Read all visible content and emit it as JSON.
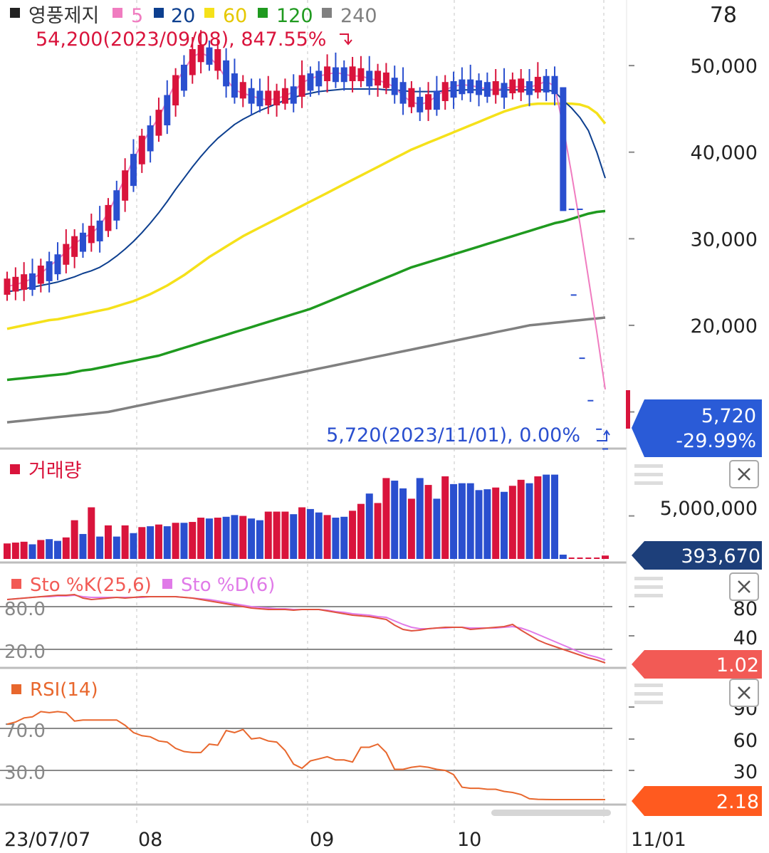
{
  "header": {
    "stock_name": "영풍제지",
    "ma_labels": [
      "5",
      "20",
      "60",
      "120",
      "240"
    ],
    "top_right_value": "78",
    "high_note": "54,200(2023/09/08), 847.55%",
    "low_note": "5,720(2023/11/01), 0.00%"
  },
  "price_badge": {
    "price": "5,720",
    "change": "-29.99%"
  },
  "volume_panel": {
    "title": "거래량",
    "badge": "393,670",
    "axis_label": "5,000,000"
  },
  "sto_panel": {
    "title_k": "Sto %K(25,6)",
    "title_d": "Sto %D(6)",
    "badge": "1.02",
    "axis": [
      "80",
      "40"
    ],
    "line_labels": [
      "80.0",
      "20.0"
    ]
  },
  "rsi_panel": {
    "title": "RSI(14)",
    "badge": "2.18",
    "axis": [
      "90",
      "60",
      "30"
    ],
    "line_labels": [
      "70.0",
      "30.0"
    ]
  },
  "x_axis": {
    "labels": [
      "23/07/07",
      "08",
      "09",
      "10",
      "11/01"
    ]
  },
  "colors": {
    "up": "#d9143c",
    "down": "#2a4fcf",
    "ma5": "#f07cc0",
    "ma20": "#0d3f8f",
    "ma60": "#f5e11a",
    "ma120": "#1f9a1f",
    "ma240": "#808080",
    "stoK": "#e0533f",
    "stoD": "#e07ae8",
    "rsi": "#e8672d",
    "price_badge": "#2a5bd7",
    "volume_badge": "#1d3f7a",
    "sto_badge": "#f25a55",
    "rsi_badge": "#ff5a1f"
  },
  "chart_data": [
    {
      "type": "candlestick",
      "title": "영풍제지",
      "y_ticks": [
        10000,
        20000,
        30000,
        40000,
        50000
      ],
      "ylim": [
        7000,
        57000
      ],
      "moving_averages": [
        {
          "name": "5",
          "values": [
            24500,
            24700,
            25000,
            25400,
            26000,
            26800,
            27600,
            28500,
            29400,
            30100,
            30600,
            31500,
            33000,
            35000,
            37000,
            39200,
            41000,
            42500,
            44000,
            46000,
            48000,
            49500,
            51000,
            51500,
            51000,
            50000,
            48500,
            47200,
            46800,
            46500,
            46200,
            46000,
            46200,
            46500,
            47000,
            48000,
            48500,
            48800,
            49000,
            49200,
            49000,
            48800,
            48800,
            48500,
            48300,
            48000,
            47500,
            46500,
            45800,
            45500,
            45800,
            46500,
            47200,
            47600,
            47800,
            47700,
            47500,
            47300,
            47200,
            47400,
            47500,
            47600,
            47500,
            47800,
            48200,
            47600,
            43000,
            37500,
            31700,
            25500,
            19200,
            12600
          ]
        },
        {
          "name": "20",
          "values": [
            23900,
            24000,
            24200,
            24400,
            24600,
            24800,
            25000,
            25300,
            25600,
            26000,
            26300,
            26700,
            27300,
            28000,
            28800,
            29700,
            30700,
            31800,
            33000,
            34300,
            35700,
            37000,
            38300,
            39500,
            40600,
            41600,
            42400,
            43200,
            43800,
            44300,
            44800,
            45200,
            45600,
            46000,
            46300,
            46600,
            46800,
            47000,
            47100,
            47200,
            47300,
            47300,
            47300,
            47300,
            47300,
            47200,
            47200,
            47100,
            47000,
            47000,
            47000,
            47000,
            47100,
            47100,
            47200,
            47200,
            47200,
            47200,
            47200,
            47200,
            47200,
            47200,
            47200,
            47200,
            47200,
            47000,
            46000,
            45100,
            44000,
            42500,
            40000,
            37000
          ]
        },
        {
          "name": "60",
          "values": [
            19600,
            19800,
            20000,
            20200,
            20400,
            20600,
            20700,
            20900,
            21100,
            21300,
            21500,
            21700,
            21900,
            22200,
            22500,
            22800,
            23200,
            23600,
            24100,
            24600,
            25200,
            25800,
            26500,
            27200,
            27900,
            28500,
            29100,
            29700,
            30300,
            30800,
            31300,
            31800,
            32300,
            32800,
            33300,
            33800,
            34300,
            34800,
            35300,
            35800,
            36300,
            36800,
            37300,
            37800,
            38300,
            38800,
            39300,
            39800,
            40300,
            40700,
            41100,
            41500,
            41900,
            42300,
            42700,
            43100,
            43500,
            43900,
            44300,
            44700,
            45000,
            45300,
            45500,
            45600,
            45600,
            45600,
            45600,
            45600,
            45500,
            45200,
            44500,
            43300
          ]
        },
        {
          "name": "120",
          "values": [
            13700,
            13800,
            13900,
            14000,
            14100,
            14200,
            14300,
            14400,
            14600,
            14800,
            14900,
            15100,
            15300,
            15500,
            15700,
            15900,
            16100,
            16300,
            16500,
            16800,
            17100,
            17400,
            17700,
            18000,
            18300,
            18600,
            18900,
            19200,
            19500,
            19800,
            20100,
            20400,
            20700,
            21000,
            21300,
            21600,
            21900,
            22300,
            22700,
            23100,
            23500,
            23900,
            24300,
            24700,
            25100,
            25500,
            25900,
            26300,
            26700,
            27000,
            27300,
            27600,
            27900,
            28200,
            28500,
            28800,
            29100,
            29400,
            29700,
            30000,
            30300,
            30600,
            30900,
            31200,
            31500,
            31800,
            32000,
            32300,
            32600,
            32900,
            33100,
            33200
          ]
        },
        {
          "name": "240",
          "values": [
            8800,
            8900,
            9000,
            9100,
            9200,
            9300,
            9400,
            9500,
            9600,
            9700,
            9800,
            9900,
            10000,
            10200,
            10400,
            10600,
            10800,
            11000,
            11200,
            11400,
            11600,
            11800,
            12000,
            12200,
            12400,
            12600,
            12800,
            13000,
            13200,
            13400,
            13600,
            13800,
            14000,
            14200,
            14400,
            14600,
            14800,
            15000,
            15200,
            15400,
            15600,
            15800,
            16000,
            16200,
            16400,
            16600,
            16800,
            17000,
            17200,
            17400,
            17600,
            17800,
            18000,
            18200,
            18400,
            18600,
            18800,
            19000,
            19200,
            19400,
            19600,
            19800,
            20000,
            20100,
            20200,
            20300,
            20400,
            20500,
            20600,
            20700,
            20800,
            20900
          ]
        }
      ]
    },
    {
      "type": "bar",
      "title": "거래량",
      "values": [
        1800000,
        1900000,
        2000000,
        1700000,
        2200000,
        2300000,
        2100000,
        2500000,
        4500000,
        2900000,
        6000000,
        2600000,
        3900000,
        2600000,
        3900000,
        3000000,
        3700000,
        3800000,
        4000000,
        3800000,
        4200000,
        4200000,
        4300000,
        4800000,
        4700000,
        4800000,
        4900000,
        5100000,
        5000000,
        4700000,
        4500000,
        5500000,
        5500000,
        5500000,
        5200000,
        6000000,
        5800000,
        5400000,
        5100000,
        4800000,
        4900000,
        5600000,
        6400000,
        7600000,
        6500000,
        9400000,
        9100000,
        8200000,
        7000000,
        9400000,
        8600000,
        7000000,
        9600000,
        8700000,
        8800000,
        8800000,
        8000000,
        8100000,
        8300000,
        7800000,
        8500000,
        9200000,
        8800000,
        9600000,
        9800000,
        9800000,
        500000,
        0,
        0,
        0,
        0,
        393670
      ],
      "colors": [
        "up",
        "up",
        "up",
        "down",
        "up",
        "down",
        "down",
        "up",
        "up",
        "down",
        "up",
        "down",
        "up",
        "down",
        "up",
        "down",
        "up",
        "down",
        "up",
        "down",
        "up",
        "down",
        "up",
        "up",
        "down",
        "up",
        "down",
        "down",
        "up",
        "down",
        "down",
        "up",
        "up",
        "up",
        "down",
        "up",
        "down",
        "down",
        "up",
        "down",
        "down",
        "up",
        "up",
        "down",
        "up",
        "up",
        "down",
        "down",
        "up",
        "down",
        "up",
        "down",
        "up",
        "down",
        "down",
        "down",
        "down",
        "down",
        "up",
        "down",
        "up",
        "up",
        "down",
        "up",
        "down",
        "down",
        "down",
        "up",
        "up",
        "up",
        "up",
        "up"
      ]
    },
    {
      "type": "line",
      "title": "Stochastic",
      "ylim": [
        0,
        100
      ],
      "series": [
        {
          "name": "Sto %K(25,6)",
          "values": [
            90,
            91,
            92,
            93,
            94,
            95,
            96,
            96,
            97,
            92,
            90,
            91,
            92,
            93,
            92,
            93,
            94,
            94,
            94,
            94,
            94,
            93,
            92,
            90,
            88,
            86,
            84,
            82,
            80,
            78,
            77,
            76,
            76,
            76,
            75,
            76,
            76,
            76,
            74,
            72,
            70,
            68,
            67,
            66,
            64,
            62,
            54,
            48,
            46,
            47,
            49,
            50,
            51,
            51,
            51,
            48,
            49,
            50,
            51,
            52,
            55,
            47,
            40,
            33,
            28,
            24,
            20,
            16,
            12,
            8,
            5,
            1.02
          ]
        },
        {
          "name": "Sto %D(6)",
          "values": [
            90,
            91,
            92,
            93,
            94,
            94,
            95,
            95,
            96,
            94,
            93,
            93,
            93,
            93,
            93,
            93,
            93,
            94,
            94,
            94,
            94,
            93,
            92,
            91,
            90,
            88,
            86,
            84,
            82,
            80,
            79,
            78,
            77,
            77,
            76,
            76,
            76,
            76,
            75,
            73,
            72,
            70,
            69,
            68,
            66,
            65,
            60,
            55,
            51,
            49,
            49,
            50,
            50,
            51,
            51,
            50,
            50,
            50,
            50,
            51,
            52,
            50,
            46,
            41,
            36,
            31,
            26,
            21,
            16,
            12,
            9,
            5
          ]
        }
      ]
    },
    {
      "type": "line",
      "title": "RSI(14)",
      "ylim": [
        0,
        100
      ],
      "series": [
        {
          "name": "RSI(14)",
          "values": [
            74,
            76,
            80,
            81,
            86,
            85,
            86,
            85,
            77,
            78,
            78,
            78,
            78,
            78,
            73,
            66,
            63,
            62,
            58,
            57,
            51,
            48,
            47,
            47,
            55,
            54,
            68,
            66,
            69,
            60,
            61,
            58,
            57,
            49,
            36,
            32,
            39,
            41,
            43,
            40,
            40,
            38,
            52,
            52,
            55,
            47,
            31,
            31,
            33,
            34,
            33,
            31,
            30,
            26,
            14,
            13,
            13,
            12,
            12,
            10,
            9,
            7,
            3,
            2.5,
            2.3,
            2.18,
            2.18,
            2.18,
            2.18,
            2.18,
            2.18,
            2.18
          ]
        }
      ]
    }
  ]
}
